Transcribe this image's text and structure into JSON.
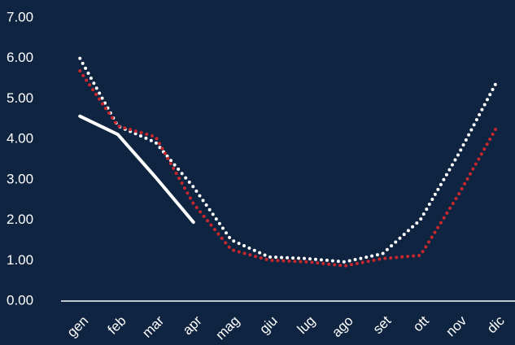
{
  "chart_data": {
    "type": "line",
    "categories": [
      "gen",
      "feb",
      "mar",
      "apr",
      "mag",
      "giu",
      "lug",
      "ago",
      "set",
      "ott",
      "nov",
      "dic"
    ],
    "series": [
      {
        "color": "#ffffff",
        "style": "dotted",
        "values": [
          6.0,
          4.33,
          3.92,
          2.82,
          1.51,
          1.09,
          1.05,
          0.97,
          1.17,
          2.01,
          3.62,
          5.39
        ]
      },
      {
        "color": "#c8282d",
        "style": "dotted",
        "values": [
          5.69,
          4.33,
          4.06,
          2.41,
          1.27,
          1.01,
          0.97,
          0.87,
          1.05,
          1.13,
          2.62,
          4.27
        ]
      },
      {
        "color": "#ffffff",
        "style": "solid",
        "values": [
          4.57,
          4.12,
          3.06,
          1.95,
          null,
          null,
          null,
          null,
          null,
          null,
          null,
          null
        ]
      }
    ],
    "ylim": [
      0,
      7
    ],
    "yticks": [
      {
        "value": 0,
        "label": "0.00"
      },
      {
        "value": 1,
        "label": "1.00"
      },
      {
        "value": 2,
        "label": "2.00"
      },
      {
        "value": 3,
        "label": "3.00"
      },
      {
        "value": 4,
        "label": "4.00"
      },
      {
        "value": 5,
        "label": "5.00"
      },
      {
        "value": 6,
        "label": "6.00"
      },
      {
        "value": 7,
        "label": "7.00"
      }
    ],
    "grid": false
  }
}
